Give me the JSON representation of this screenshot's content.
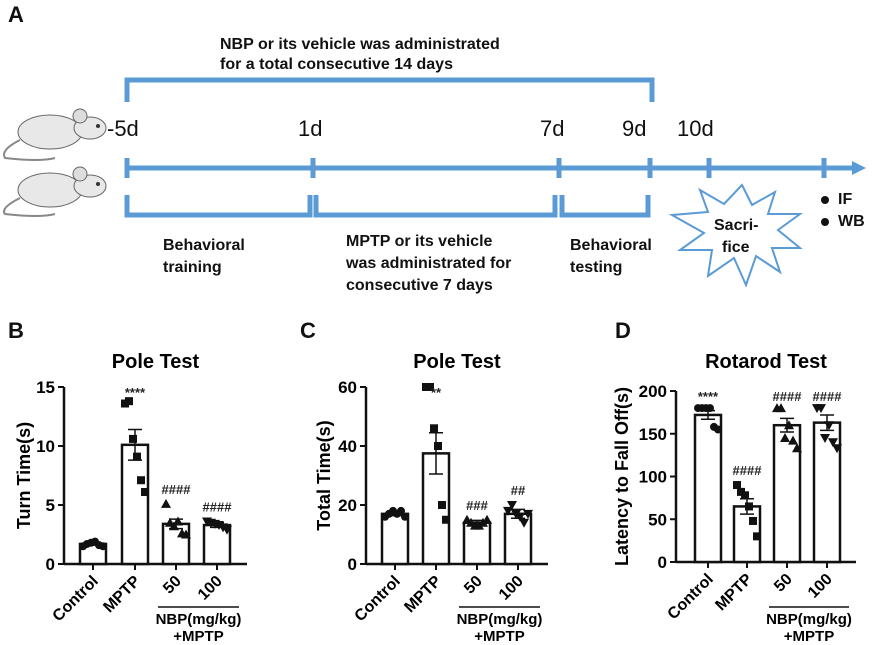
{
  "panels": {
    "a": "A",
    "b": "B",
    "c": "C",
    "d": "D"
  },
  "timeline": {
    "nbp_line1": "NBP or its vehicle was administrated",
    "nbp_line2": "for a total consecutive 14 days",
    "days": [
      "-5d",
      "1d",
      "7d",
      "9d",
      "10d"
    ],
    "behavioral_training": [
      "Behavioral",
      "training"
    ],
    "mptp_text": [
      "MPTP or its vehicle",
      "was administrated for",
      "consecutive 7 days"
    ],
    "behavioral_testing": [
      "Behavioral",
      "testing"
    ],
    "sacrifice": [
      "Sacri-",
      "fice"
    ],
    "assays": [
      "IF",
      "WB"
    ],
    "color": "#5b9bd5"
  },
  "chart_data": [
    {
      "type": "bar",
      "title": "Pole Test",
      "ylabel": "Turn Time(s)",
      "ylim": [
        0,
        15
      ],
      "yticks": [
        0,
        5,
        10,
        15
      ],
      "categories": [
        "Control",
        "MPTP",
        "50",
        "100"
      ],
      "group_label": [
        "NBP(mg/kg)",
        "+MPTP"
      ],
      "values": [
        1.7,
        10.1,
        3.4,
        3.3
      ],
      "sem": [
        0.1,
        1.3,
        0.4,
        0.2
      ],
      "points": [
        [
          1.5,
          1.7,
          1.8,
          1.9,
          1.6,
          1.5
        ],
        [
          13.6,
          13.8,
          10.6,
          9.1,
          7.1,
          6.1
        ],
        [
          5.1,
          3.5,
          3.2,
          3.6,
          2.6,
          2.5
        ],
        [
          3.6,
          3.5,
          3.4,
          3.3,
          3.1,
          2.9
        ]
      ],
      "markers": [
        "circle",
        "square",
        "triangle",
        "triangle-down"
      ],
      "annotations": [
        "",
        "****",
        "####",
        "####"
      ]
    },
    {
      "type": "bar",
      "title": "Pole Test",
      "ylabel": "Total Time(s)",
      "ylim": [
        0,
        60
      ],
      "yticks": [
        0,
        20,
        40,
        60
      ],
      "categories": [
        "Control",
        "MPTP",
        "50",
        "100"
      ],
      "group_label": [
        "NBP(mg/kg)",
        "+MPTP"
      ],
      "values": [
        17,
        37.5,
        14,
        17
      ],
      "sem": [
        0.6,
        7,
        0.8,
        1.5
      ],
      "points": [
        [
          16,
          17,
          18,
          17,
          18,
          16
        ],
        [
          60,
          60,
          46,
          40,
          20,
          15
        ],
        [
          15,
          14,
          13,
          13,
          14,
          15
        ],
        [
          18,
          20,
          17,
          16,
          14,
          17
        ]
      ],
      "markers": [
        "circle",
        "square",
        "triangle",
        "triangle-down"
      ],
      "annotations": [
        "",
        "**",
        "###",
        "##"
      ]
    },
    {
      "type": "bar",
      "title": "Rotarod Test",
      "ylabel": "Latency to Fall Off(s)",
      "ylim": [
        0,
        200
      ],
      "yticks": [
        0,
        50,
        100,
        150,
        200
      ],
      "categories": [
        "Control",
        "MPTP",
        "50",
        "100"
      ],
      "group_label": [
        "NBP(mg/kg)",
        "+MPTP"
      ],
      "values": [
        172,
        65,
        160,
        163
      ],
      "sem": [
        5,
        9,
        8,
        9
      ],
      "points": [
        [
          180,
          180,
          180,
          180,
          158,
          155
        ],
        [
          90,
          82,
          78,
          65,
          48,
          30
        ],
        [
          180,
          180,
          145,
          160,
          142,
          133
        ],
        [
          180,
          180,
          145,
          160,
          140,
          133
        ]
      ],
      "markers": [
        "circle",
        "square",
        "triangle",
        "triangle-down"
      ],
      "annotations": [
        "****",
        "####",
        "####",
        "####"
      ]
    }
  ]
}
